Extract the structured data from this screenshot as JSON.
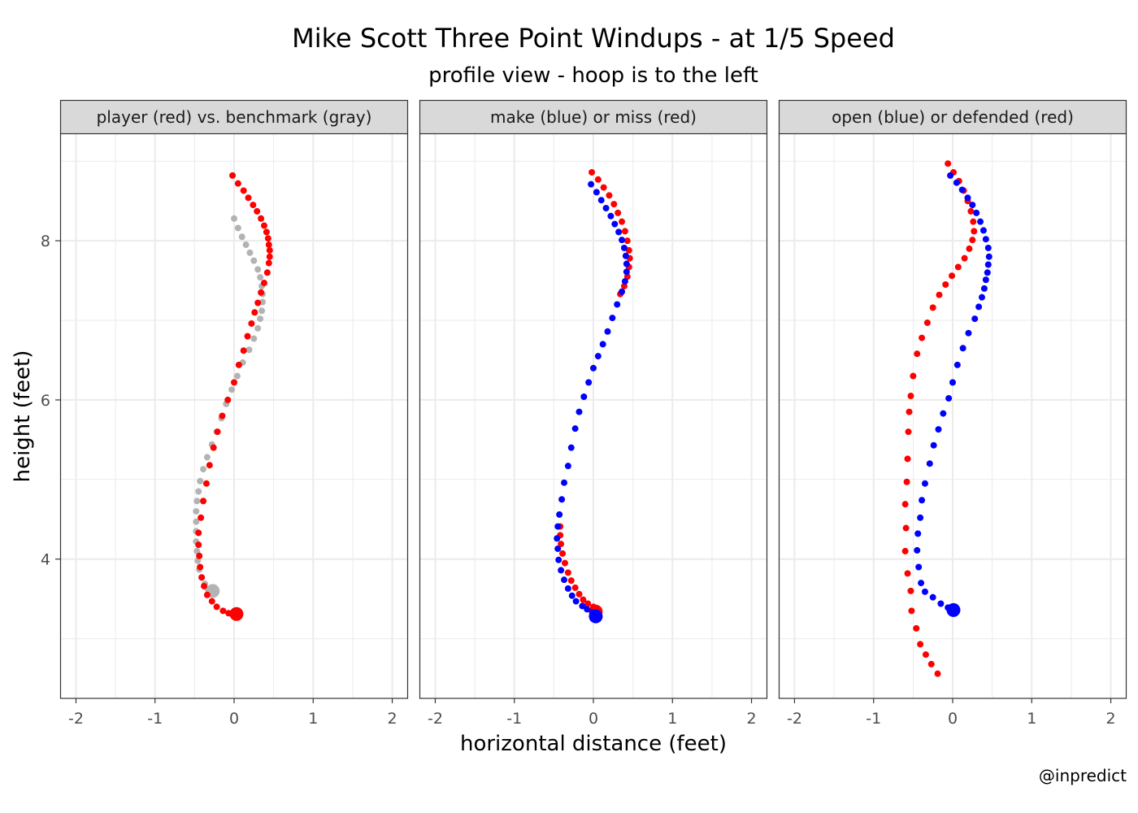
{
  "chart_data": {
    "type": "scatter",
    "title": "Mike Scott Three Point Windups - at 1/5 Speed",
    "subtitle": "profile view - hoop is to the left",
    "xlabel": "horizontal distance (feet)",
    "ylabel": "height (feet)",
    "caption": "@inpredict",
    "xlim": [
      -2.2,
      2.2
    ],
    "ylim": [
      2.25,
      9.35
    ],
    "x_ticks": [
      -2,
      -1,
      0,
      1,
      2
    ],
    "y_ticks": [
      4,
      6,
      8
    ],
    "grid": true,
    "colors": {
      "red": "#ff0000",
      "blue": "#0000ff",
      "gray": "#b3b3b3",
      "strip_fill": "#d9d9d9",
      "grid": "#ebebeb"
    },
    "panels": [
      {
        "strip": "player (red) vs. benchmark (gray)",
        "series": [
          {
            "color": "gray",
            "points": [
              [
                0.0,
                8.28
              ],
              [
                0.05,
                8.16
              ],
              [
                0.1,
                8.05
              ],
              [
                0.15,
                7.95
              ],
              [
                0.2,
                7.85
              ],
              [
                0.25,
                7.75
              ],
              [
                0.3,
                7.64
              ],
              [
                0.33,
                7.54
              ],
              [
                0.35,
                7.43
              ],
              [
                0.36,
                7.33
              ],
              [
                0.36,
                7.23
              ],
              [
                0.35,
                7.12
              ],
              [
                0.33,
                7.02
              ],
              [
                0.3,
                6.9
              ],
              [
                0.25,
                6.77
              ],
              [
                0.19,
                6.63
              ],
              [
                0.11,
                6.47
              ],
              [
                0.04,
                6.3
              ],
              [
                -0.03,
                6.13
              ],
              [
                -0.1,
                5.95
              ],
              [
                -0.16,
                5.77
              ],
              [
                -0.22,
                5.6
              ],
              [
                -0.28,
                5.44
              ],
              [
                -0.34,
                5.28
              ],
              [
                -0.39,
                5.13
              ],
              [
                -0.43,
                4.98
              ],
              [
                -0.45,
                4.85
              ],
              [
                -0.47,
                4.73
              ],
              [
                -0.48,
                4.6
              ],
              [
                -0.48,
                4.47
              ],
              [
                -0.48,
                4.35
              ],
              [
                -0.48,
                4.22
              ],
              [
                -0.47,
                4.1
              ],
              [
                -0.46,
                3.98
              ],
              [
                -0.44,
                3.87
              ],
              [
                -0.41,
                3.77
              ],
              [
                -0.37,
                3.69
              ],
              [
                -0.33,
                3.62
              ],
              [
                -0.27,
                3.6
              ]
            ],
            "last_point_large": true
          },
          {
            "color": "red",
            "points": [
              [
                -0.02,
                8.82
              ],
              [
                0.05,
                8.72
              ],
              [
                0.12,
                8.63
              ],
              [
                0.18,
                8.54
              ],
              [
                0.24,
                8.45
              ],
              [
                0.29,
                8.37
              ],
              [
                0.34,
                8.28
              ],
              [
                0.38,
                8.19
              ],
              [
                0.41,
                8.11
              ],
              [
                0.43,
                8.03
              ],
              [
                0.44,
                7.95
              ],
              [
                0.45,
                7.88
              ],
              [
                0.45,
                7.8
              ],
              [
                0.44,
                7.72
              ],
              [
                0.42,
                7.6
              ],
              [
                0.38,
                7.47
              ],
              [
                0.34,
                7.35
              ],
              [
                0.3,
                7.22
              ],
              [
                0.26,
                7.1
              ],
              [
                0.22,
                6.96
              ],
              [
                0.17,
                6.8
              ],
              [
                0.12,
                6.62
              ],
              [
                0.06,
                6.44
              ],
              [
                0.0,
                6.22
              ],
              [
                -0.08,
                6.0
              ],
              [
                -0.15,
                5.8
              ],
              [
                -0.21,
                5.6
              ],
              [
                -0.26,
                5.4
              ],
              [
                -0.31,
                5.18
              ],
              [
                -0.35,
                4.95
              ],
              [
                -0.39,
                4.73
              ],
              [
                -0.42,
                4.52
              ],
              [
                -0.45,
                4.33
              ],
              [
                -0.45,
                4.18
              ],
              [
                -0.44,
                4.04
              ],
              [
                -0.43,
                3.9
              ],
              [
                -0.41,
                3.77
              ],
              [
                -0.38,
                3.66
              ],
              [
                -0.34,
                3.55
              ],
              [
                -0.28,
                3.47
              ],
              [
                -0.22,
                3.4
              ],
              [
                -0.14,
                3.35
              ],
              [
                -0.07,
                3.32
              ],
              [
                0.03,
                3.31
              ]
            ],
            "last_point_large": true
          }
        ]
      },
      {
        "strip": "make (blue) or miss (red)",
        "series": [
          {
            "color": "red",
            "points": [
              [
                -0.02,
                8.86
              ],
              [
                0.06,
                8.77
              ],
              [
                0.13,
                8.67
              ],
              [
                0.2,
                8.57
              ],
              [
                0.26,
                8.46
              ],
              [
                0.31,
                8.35
              ],
              [
                0.36,
                8.24
              ],
              [
                0.4,
                8.12
              ],
              [
                0.43,
                8.0
              ],
              [
                0.45,
                7.88
              ],
              [
                0.46,
                7.78
              ],
              [
                0.45,
                7.67
              ],
              [
                0.43,
                7.55
              ],
              [
                0.39,
                7.43
              ],
              [
                0.34,
                7.33
              ]
            ],
            "last_point_large": false
          },
          {
            "color": "red",
            "points": [
              [
                -0.42,
                4.41
              ],
              [
                -0.42,
                4.3
              ],
              [
                -0.41,
                4.19
              ],
              [
                -0.39,
                4.07
              ],
              [
                -0.36,
                3.95
              ],
              [
                -0.32,
                3.83
              ],
              [
                -0.28,
                3.73
              ],
              [
                -0.23,
                3.64
              ],
              [
                -0.18,
                3.56
              ],
              [
                -0.13,
                3.49
              ],
              [
                -0.07,
                3.44
              ],
              [
                0.0,
                3.4
              ],
              [
                0.03,
                3.34
              ]
            ],
            "last_point_large": true
          },
          {
            "color": "blue",
            "points": [
              [
                -0.03,
                8.71
              ],
              [
                0.04,
                8.61
              ],
              [
                0.1,
                8.51
              ],
              [
                0.16,
                8.41
              ],
              [
                0.22,
                8.31
              ],
              [
                0.27,
                8.21
              ],
              [
                0.32,
                8.11
              ],
              [
                0.36,
                8.01
              ],
              [
                0.39,
                7.91
              ],
              [
                0.41,
                7.81
              ],
              [
                0.42,
                7.71
              ],
              [
                0.42,
                7.61
              ],
              [
                0.4,
                7.49
              ],
              [
                0.36,
                7.36
              ],
              [
                0.3,
                7.2
              ],
              [
                0.24,
                7.03
              ],
              [
                0.18,
                6.86
              ],
              [
                0.12,
                6.7
              ],
              [
                0.06,
                6.55
              ],
              [
                0.0,
                6.4
              ],
              [
                -0.06,
                6.22
              ],
              [
                -0.12,
                6.04
              ],
              [
                -0.18,
                5.85
              ],
              [
                -0.23,
                5.64
              ],
              [
                -0.28,
                5.4
              ],
              [
                -0.32,
                5.17
              ],
              [
                -0.37,
                4.96
              ],
              [
                -0.4,
                4.75
              ],
              [
                -0.43,
                4.56
              ],
              [
                -0.45,
                4.41
              ],
              [
                -0.46,
                4.26
              ],
              [
                -0.45,
                4.13
              ],
              [
                -0.44,
                3.99
              ],
              [
                -0.41,
                3.86
              ],
              [
                -0.37,
                3.74
              ],
              [
                -0.32,
                3.63
              ],
              [
                -0.27,
                3.54
              ],
              [
                -0.22,
                3.47
              ],
              [
                -0.14,
                3.41
              ],
              [
                -0.08,
                3.37
              ],
              [
                -0.01,
                3.33
              ],
              [
                0.03,
                3.28
              ]
            ],
            "last_point_large": true
          }
        ]
      },
      {
        "strip": "open (blue) or defended (red)",
        "series": [
          {
            "color": "red",
            "points": [
              [
                -0.06,
                8.97
              ],
              [
                0.01,
                8.86
              ],
              [
                0.08,
                8.75
              ],
              [
                0.14,
                8.63
              ],
              [
                0.19,
                8.5
              ],
              [
                0.23,
                8.37
              ],
              [
                0.26,
                8.24
              ],
              [
                0.27,
                8.12
              ],
              [
                0.25,
                8.01
              ],
              [
                0.21,
                7.9
              ],
              [
                0.15,
                7.78
              ],
              [
                0.07,
                7.67
              ],
              [
                -0.01,
                7.56
              ],
              [
                -0.09,
                7.45
              ],
              [
                -0.17,
                7.32
              ],
              [
                -0.25,
                7.16
              ],
              [
                -0.32,
                6.97
              ],
              [
                -0.39,
                6.78
              ],
              [
                -0.45,
                6.58
              ],
              [
                -0.5,
                6.3
              ],
              [
                -0.53,
                6.05
              ],
              [
                -0.55,
                5.85
              ],
              [
                -0.56,
                5.6
              ],
              [
                -0.57,
                5.26
              ],
              [
                -0.58,
                4.97
              ],
              [
                -0.6,
                4.69
              ],
              [
                -0.59,
                4.39
              ],
              [
                -0.6,
                4.1
              ],
              [
                -0.57,
                3.82
              ],
              [
                -0.53,
                3.6
              ],
              [
                -0.52,
                3.35
              ],
              [
                -0.46,
                3.13
              ],
              [
                -0.41,
                2.93
              ],
              [
                -0.34,
                2.8
              ],
              [
                -0.27,
                2.68
              ],
              [
                -0.19,
                2.56
              ]
            ],
            "last_point_large": false
          },
          {
            "color": "blue",
            "points": [
              [
                -0.03,
                8.82
              ],
              [
                0.05,
                8.73
              ],
              [
                0.12,
                8.64
              ],
              [
                0.19,
                8.54
              ],
              [
                0.25,
                8.45
              ],
              [
                0.3,
                8.35
              ],
              [
                0.35,
                8.24
              ],
              [
                0.39,
                8.13
              ],
              [
                0.42,
                8.02
              ],
              [
                0.45,
                7.91
              ],
              [
                0.46,
                7.8
              ],
              [
                0.45,
                7.7
              ],
              [
                0.44,
                7.6
              ],
              [
                0.42,
                7.51
              ],
              [
                0.4,
                7.4
              ],
              [
                0.37,
                7.29
              ],
              [
                0.33,
                7.17
              ],
              [
                0.28,
                7.02
              ],
              [
                0.2,
                6.84
              ],
              [
                0.13,
                6.65
              ],
              [
                0.06,
                6.44
              ],
              [
                0.0,
                6.22
              ],
              [
                -0.05,
                6.02
              ],
              [
                -0.12,
                5.83
              ],
              [
                -0.18,
                5.63
              ],
              [
                -0.24,
                5.43
              ],
              [
                -0.29,
                5.2
              ],
              [
                -0.35,
                4.95
              ],
              [
                -0.39,
                4.74
              ],
              [
                -0.41,
                4.52
              ],
              [
                -0.44,
                4.32
              ],
              [
                -0.45,
                4.11
              ],
              [
                -0.43,
                3.9
              ],
              [
                -0.4,
                3.7
              ],
              [
                -0.35,
                3.59
              ],
              [
                -0.25,
                3.52
              ],
              [
                -0.15,
                3.44
              ],
              [
                -0.06,
                3.39
              ],
              [
                0.01,
                3.36
              ]
            ],
            "last_point_large": true
          }
        ]
      }
    ]
  }
}
